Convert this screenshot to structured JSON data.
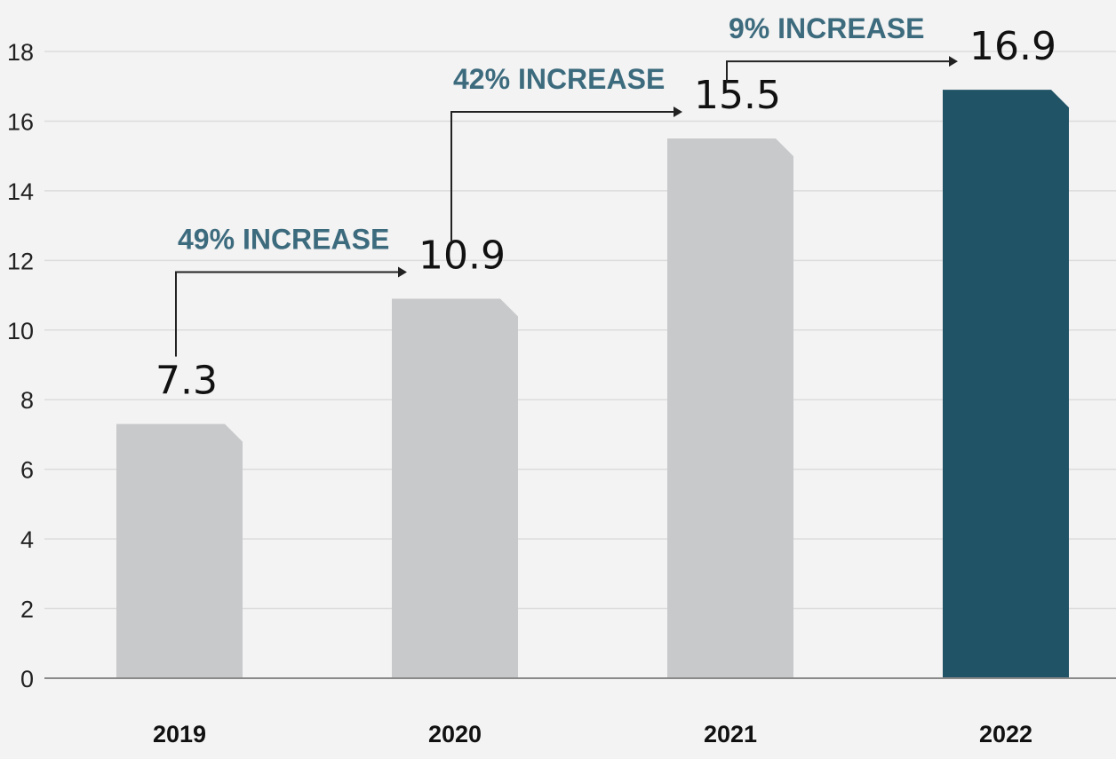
{
  "chart_data": {
    "type": "bar",
    "categories": [
      "2019",
      "2020",
      "2021",
      "2022"
    ],
    "values": [
      7.3,
      10.9,
      15.5,
      16.9
    ],
    "value_labels": [
      "7.3",
      "10.9",
      "15.5",
      "16.9"
    ],
    "ylim": [
      0,
      18
    ],
    "yticks": [
      0,
      2,
      4,
      6,
      8,
      10,
      12,
      14,
      16,
      18
    ],
    "grid": true,
    "title": "",
    "xlabel": "",
    "ylabel": "",
    "bar_colors": [
      "#c8c9cb",
      "#c8c9cb",
      "#c8c9cb",
      "#215366"
    ],
    "annotations": [
      {
        "text": "49% INCREASE",
        "from": "2019",
        "to": "2020"
      },
      {
        "text": "42% INCREASE",
        "from": "2020",
        "to": "2021"
      },
      {
        "text": "9% INCREASE",
        "from": "2021",
        "to": "2022"
      }
    ],
    "annotation_color": "#3d6b7e"
  }
}
